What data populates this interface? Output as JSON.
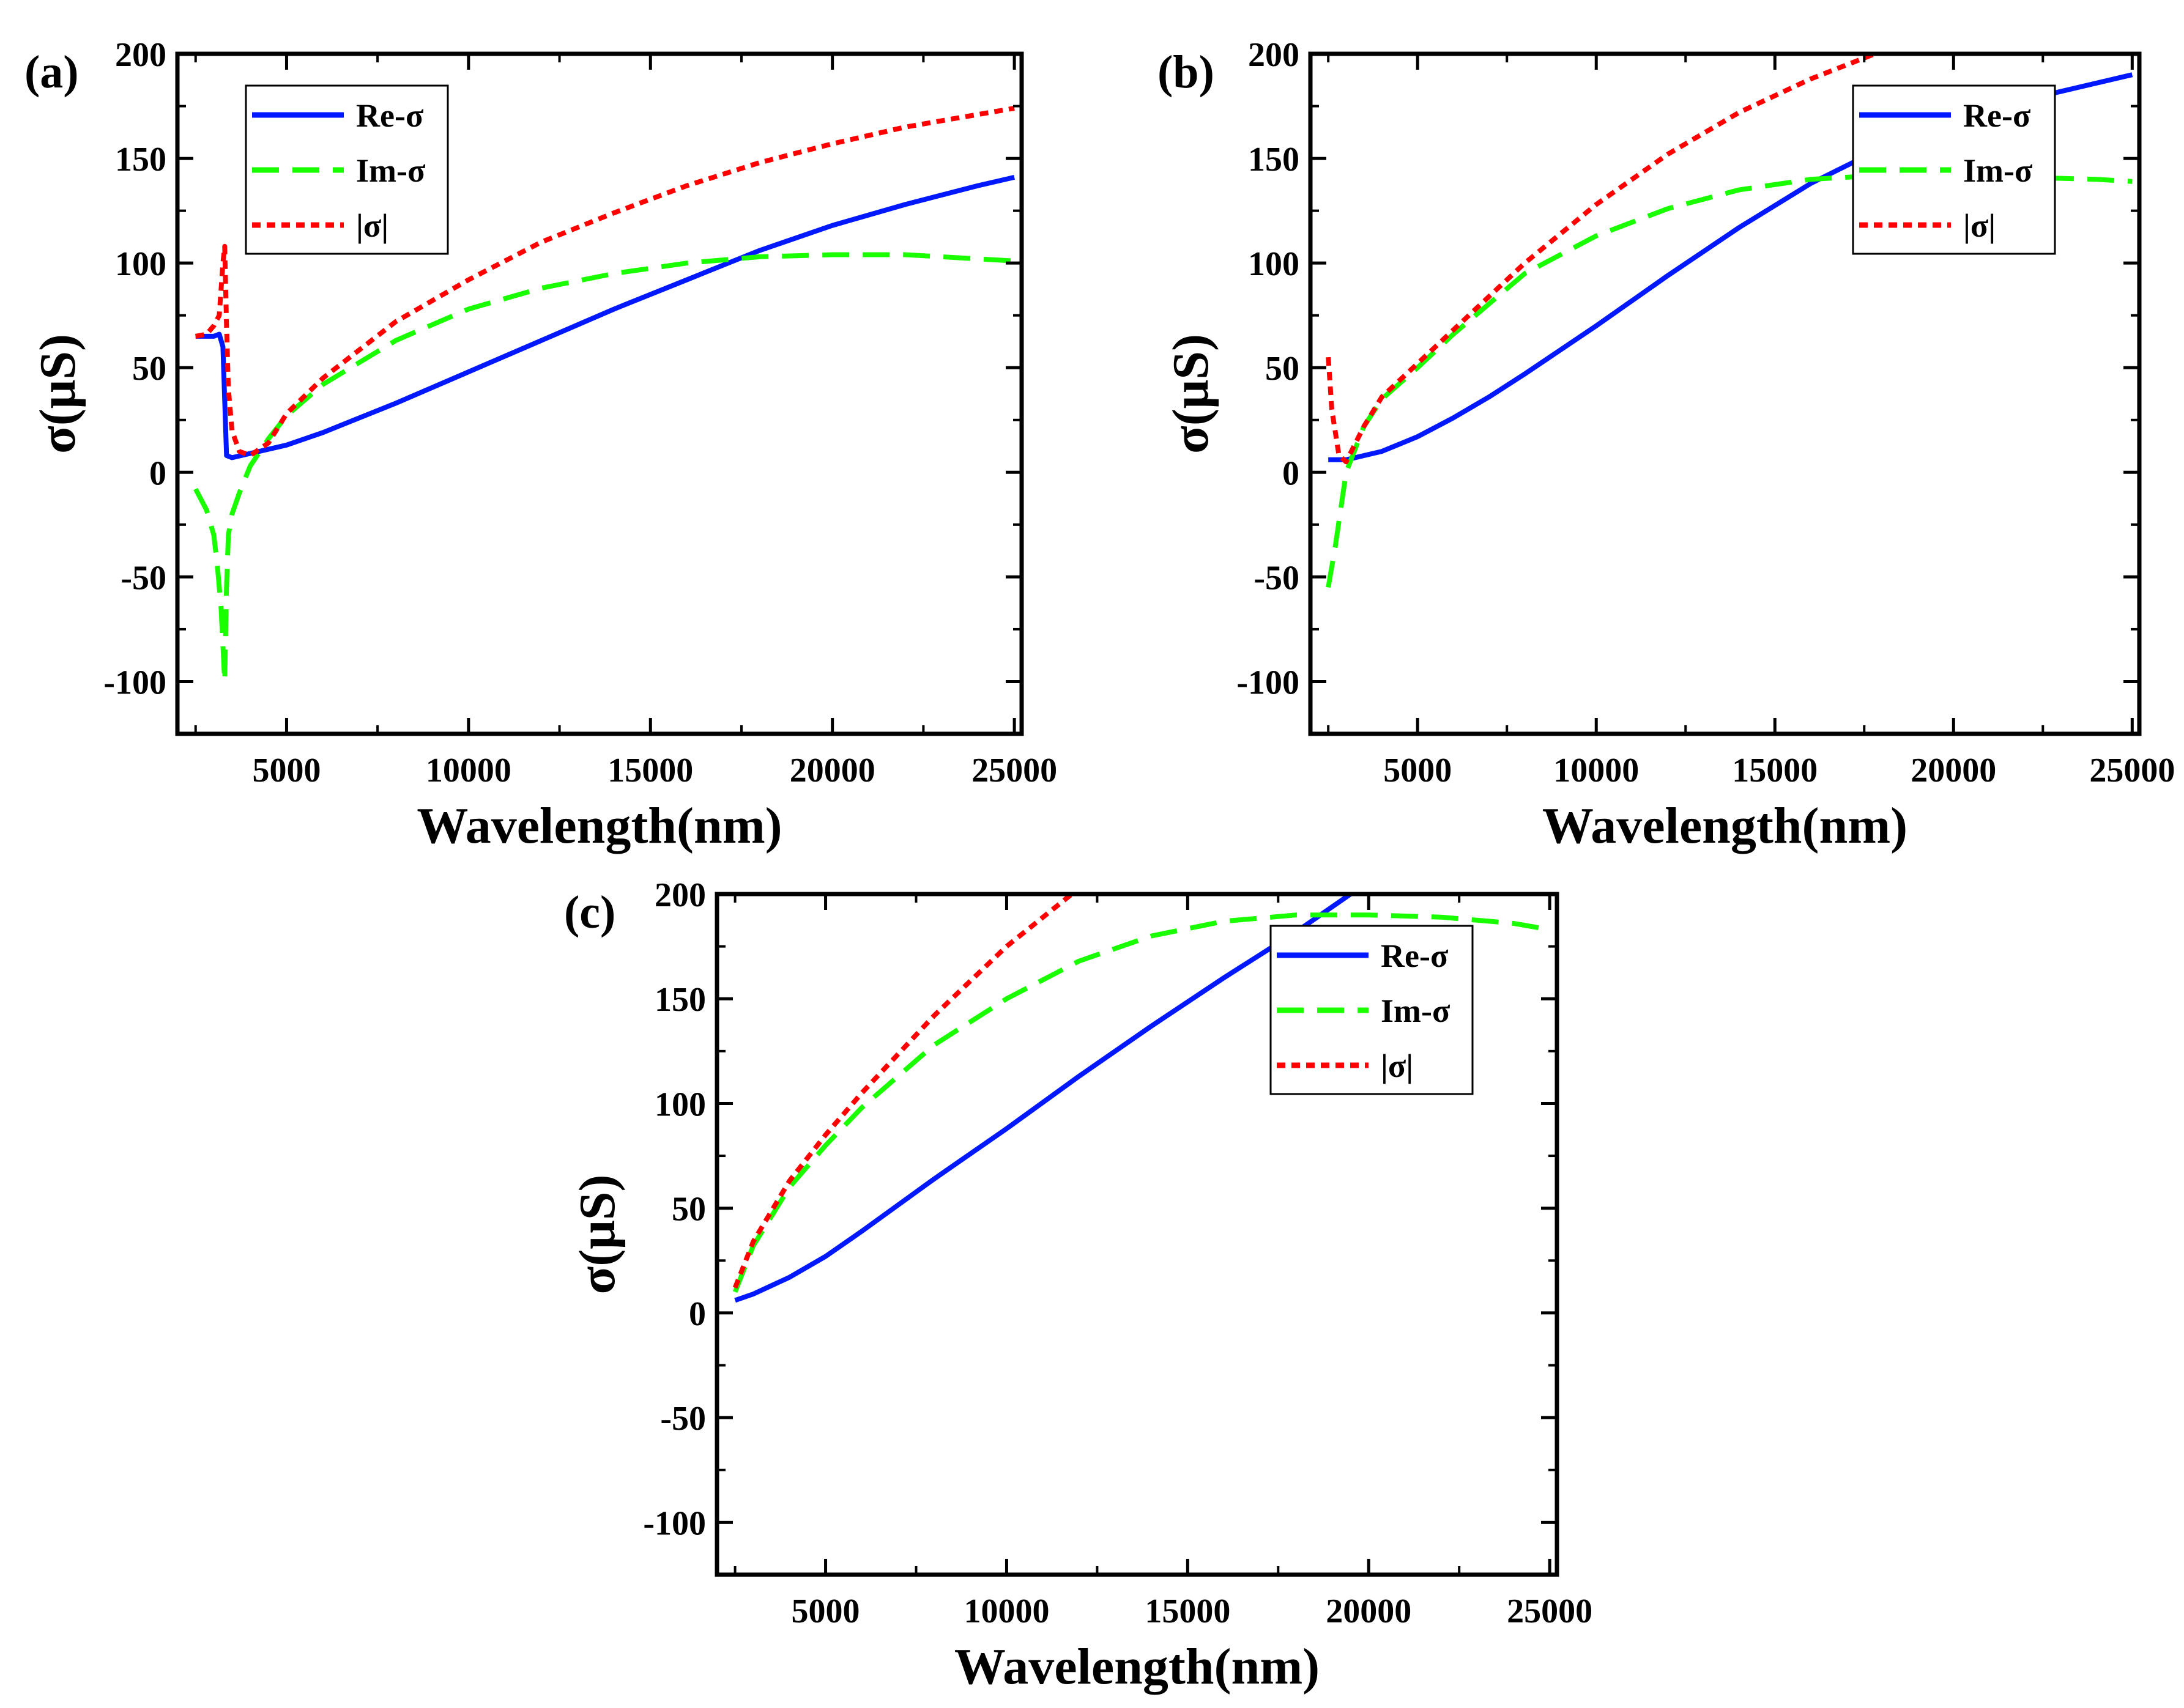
{
  "chart_data": [
    {
      "type": "line",
      "panel_label": "(a)",
      "xlabel": "Wavelength(nm)",
      "ylabel": "σ(μS)",
      "xlim": [
        2000,
        25200
      ],
      "ylim": [
        -125,
        200
      ],
      "xticks": [
        5000,
        10000,
        15000,
        20000,
        25000
      ],
      "yticks": [
        -100,
        -50,
        0,
        50,
        100,
        150,
        200
      ],
      "legend_position": "top-left",
      "series": [
        {
          "name": "Re-σ",
          "color": "#0018ff",
          "style": "solid",
          "x": [
            2500,
            3000,
            3150,
            3250,
            3350,
            3500,
            4000,
            5000,
            6000,
            7000,
            8000,
            10000,
            12000,
            14000,
            16000,
            18000,
            20000,
            22000,
            24000,
            25000
          ],
          "y": [
            65,
            65,
            66,
            60,
            8,
            7,
            9,
            13,
            19,
            26,
            33,
            48,
            63,
            78,
            92,
            106,
            118,
            128,
            137,
            141
          ]
        },
        {
          "name": "Im-σ",
          "color": "#1aff00",
          "style": "dashed",
          "x": [
            2500,
            2800,
            3000,
            3100,
            3200,
            3300,
            3350,
            3400,
            3500,
            3700,
            4000,
            4500,
            5000,
            6000,
            8000,
            10000,
            12000,
            14000,
            16000,
            18000,
            20000,
            22000,
            24000,
            25000
          ],
          "y": [
            -8,
            -18,
            -30,
            -45,
            -65,
            -100,
            -55,
            -30,
            -20,
            -10,
            3,
            16,
            27,
            42,
            63,
            78,
            88,
            95,
            100,
            103,
            104,
            104,
            102,
            101
          ]
        },
        {
          "name": "|σ|",
          "color": "#ff0000",
          "style": "dotted",
          "x": [
            2500,
            2800,
            3000,
            3150,
            3250,
            3300,
            3350,
            3400,
            3500,
            3700,
            4000,
            4500,
            5000,
            6000,
            8000,
            10000,
            12000,
            14000,
            16000,
            18000,
            20000,
            22000,
            24000,
            25000
          ],
          "y": [
            65,
            66,
            70,
            75,
            100,
            108,
            70,
            40,
            20,
            10,
            8,
            14,
            28,
            45,
            72,
            92,
            110,
            124,
            137,
            148,
            157,
            165,
            171,
            174
          ]
        }
      ],
      "legend": [
        "Re-σ",
        "Im-σ",
        "|σ|"
      ]
    },
    {
      "type": "line",
      "panel_label": "(b)",
      "xlabel": "Wavelength(nm)",
      "ylabel": "σ(μS)",
      "xlim": [
        2000,
        25200
      ],
      "ylim": [
        -125,
        200
      ],
      "xticks": [
        5000,
        10000,
        15000,
        20000,
        25000
      ],
      "yticks": [
        -100,
        -50,
        0,
        50,
        100,
        150,
        200
      ],
      "legend_position": "top-right",
      "series": [
        {
          "name": "Re-σ",
          "color": "#0018ff",
          "style": "solid",
          "x": [
            2500,
            3000,
            4000,
            5000,
            6000,
            7000,
            8000,
            10000,
            12000,
            14000,
            16000,
            18000,
            20000,
            22000,
            24000,
            25000
          ],
          "y": [
            6,
            6,
            10,
            17,
            26,
            36,
            47,
            70,
            94,
            117,
            138,
            155,
            168,
            178,
            186,
            190
          ]
        },
        {
          "name": "Im-σ",
          "color": "#1aff00",
          "style": "dashed",
          "x": [
            2500,
            2700,
            3000,
            3500,
            4000,
            5000,
            6000,
            8000,
            10000,
            12000,
            14000,
            16000,
            18000,
            20000,
            22000,
            24000,
            25000
          ],
          "y": [
            -55,
            -35,
            0,
            22,
            35,
            50,
            66,
            95,
            113,
            126,
            135,
            140,
            142,
            142,
            141,
            140,
            139
          ]
        },
        {
          "name": "|σ|",
          "color": "#ff0000",
          "style": "dotted",
          "x": [
            2500,
            2600,
            2800,
            3000,
            3500,
            4000,
            5000,
            6000,
            8000,
            10000,
            12000,
            14000,
            16000,
            17800
          ],
          "y": [
            55,
            30,
            8,
            5,
            22,
            36,
            52,
            68,
            100,
            128,
            152,
            172,
            188,
            200
          ]
        }
      ],
      "legend": [
        "Re-σ",
        "Im-σ",
        "|σ|"
      ]
    },
    {
      "type": "line",
      "panel_label": "(c)",
      "xlabel": "Wavelength(nm)",
      "ylabel": "σ(μS)",
      "xlim": [
        2000,
        25200
      ],
      "ylim": [
        -125,
        200
      ],
      "xticks": [
        5000,
        10000,
        15000,
        20000,
        25000
      ],
      "yticks": [
        -100,
        -50,
        0,
        50,
        100,
        150,
        200
      ],
      "legend_position": "top-right",
      "series": [
        {
          "name": "Re-σ",
          "color": "#0018ff",
          "style": "solid",
          "x": [
            2500,
            3000,
            4000,
            5000,
            6000,
            8000,
            10000,
            12000,
            14000,
            16000,
            18000,
            19500
          ],
          "y": [
            6,
            9,
            17,
            27,
            39,
            64,
            88,
            113,
            137,
            160,
            182,
            200
          ]
        },
        {
          "name": "Im-σ",
          "color": "#1aff00",
          "style": "dashed",
          "x": [
            2500,
            3000,
            4000,
            5000,
            6000,
            8000,
            10000,
            12000,
            14000,
            16000,
            18000,
            20000,
            22000,
            24000,
            25000
          ],
          "y": [
            10,
            32,
            60,
            80,
            98,
            128,
            150,
            168,
            180,
            187,
            190,
            190,
            189,
            186,
            183
          ]
        },
        {
          "name": "|σ|",
          "color": "#ff0000",
          "style": "dotted",
          "x": [
            2500,
            3000,
            4000,
            5000,
            6000,
            8000,
            10000,
            11800
          ],
          "y": [
            12,
            34,
            63,
            85,
            105,
            142,
            175,
            200
          ]
        }
      ],
      "legend": [
        "Re-σ",
        "Im-σ",
        "|σ|"
      ]
    }
  ]
}
